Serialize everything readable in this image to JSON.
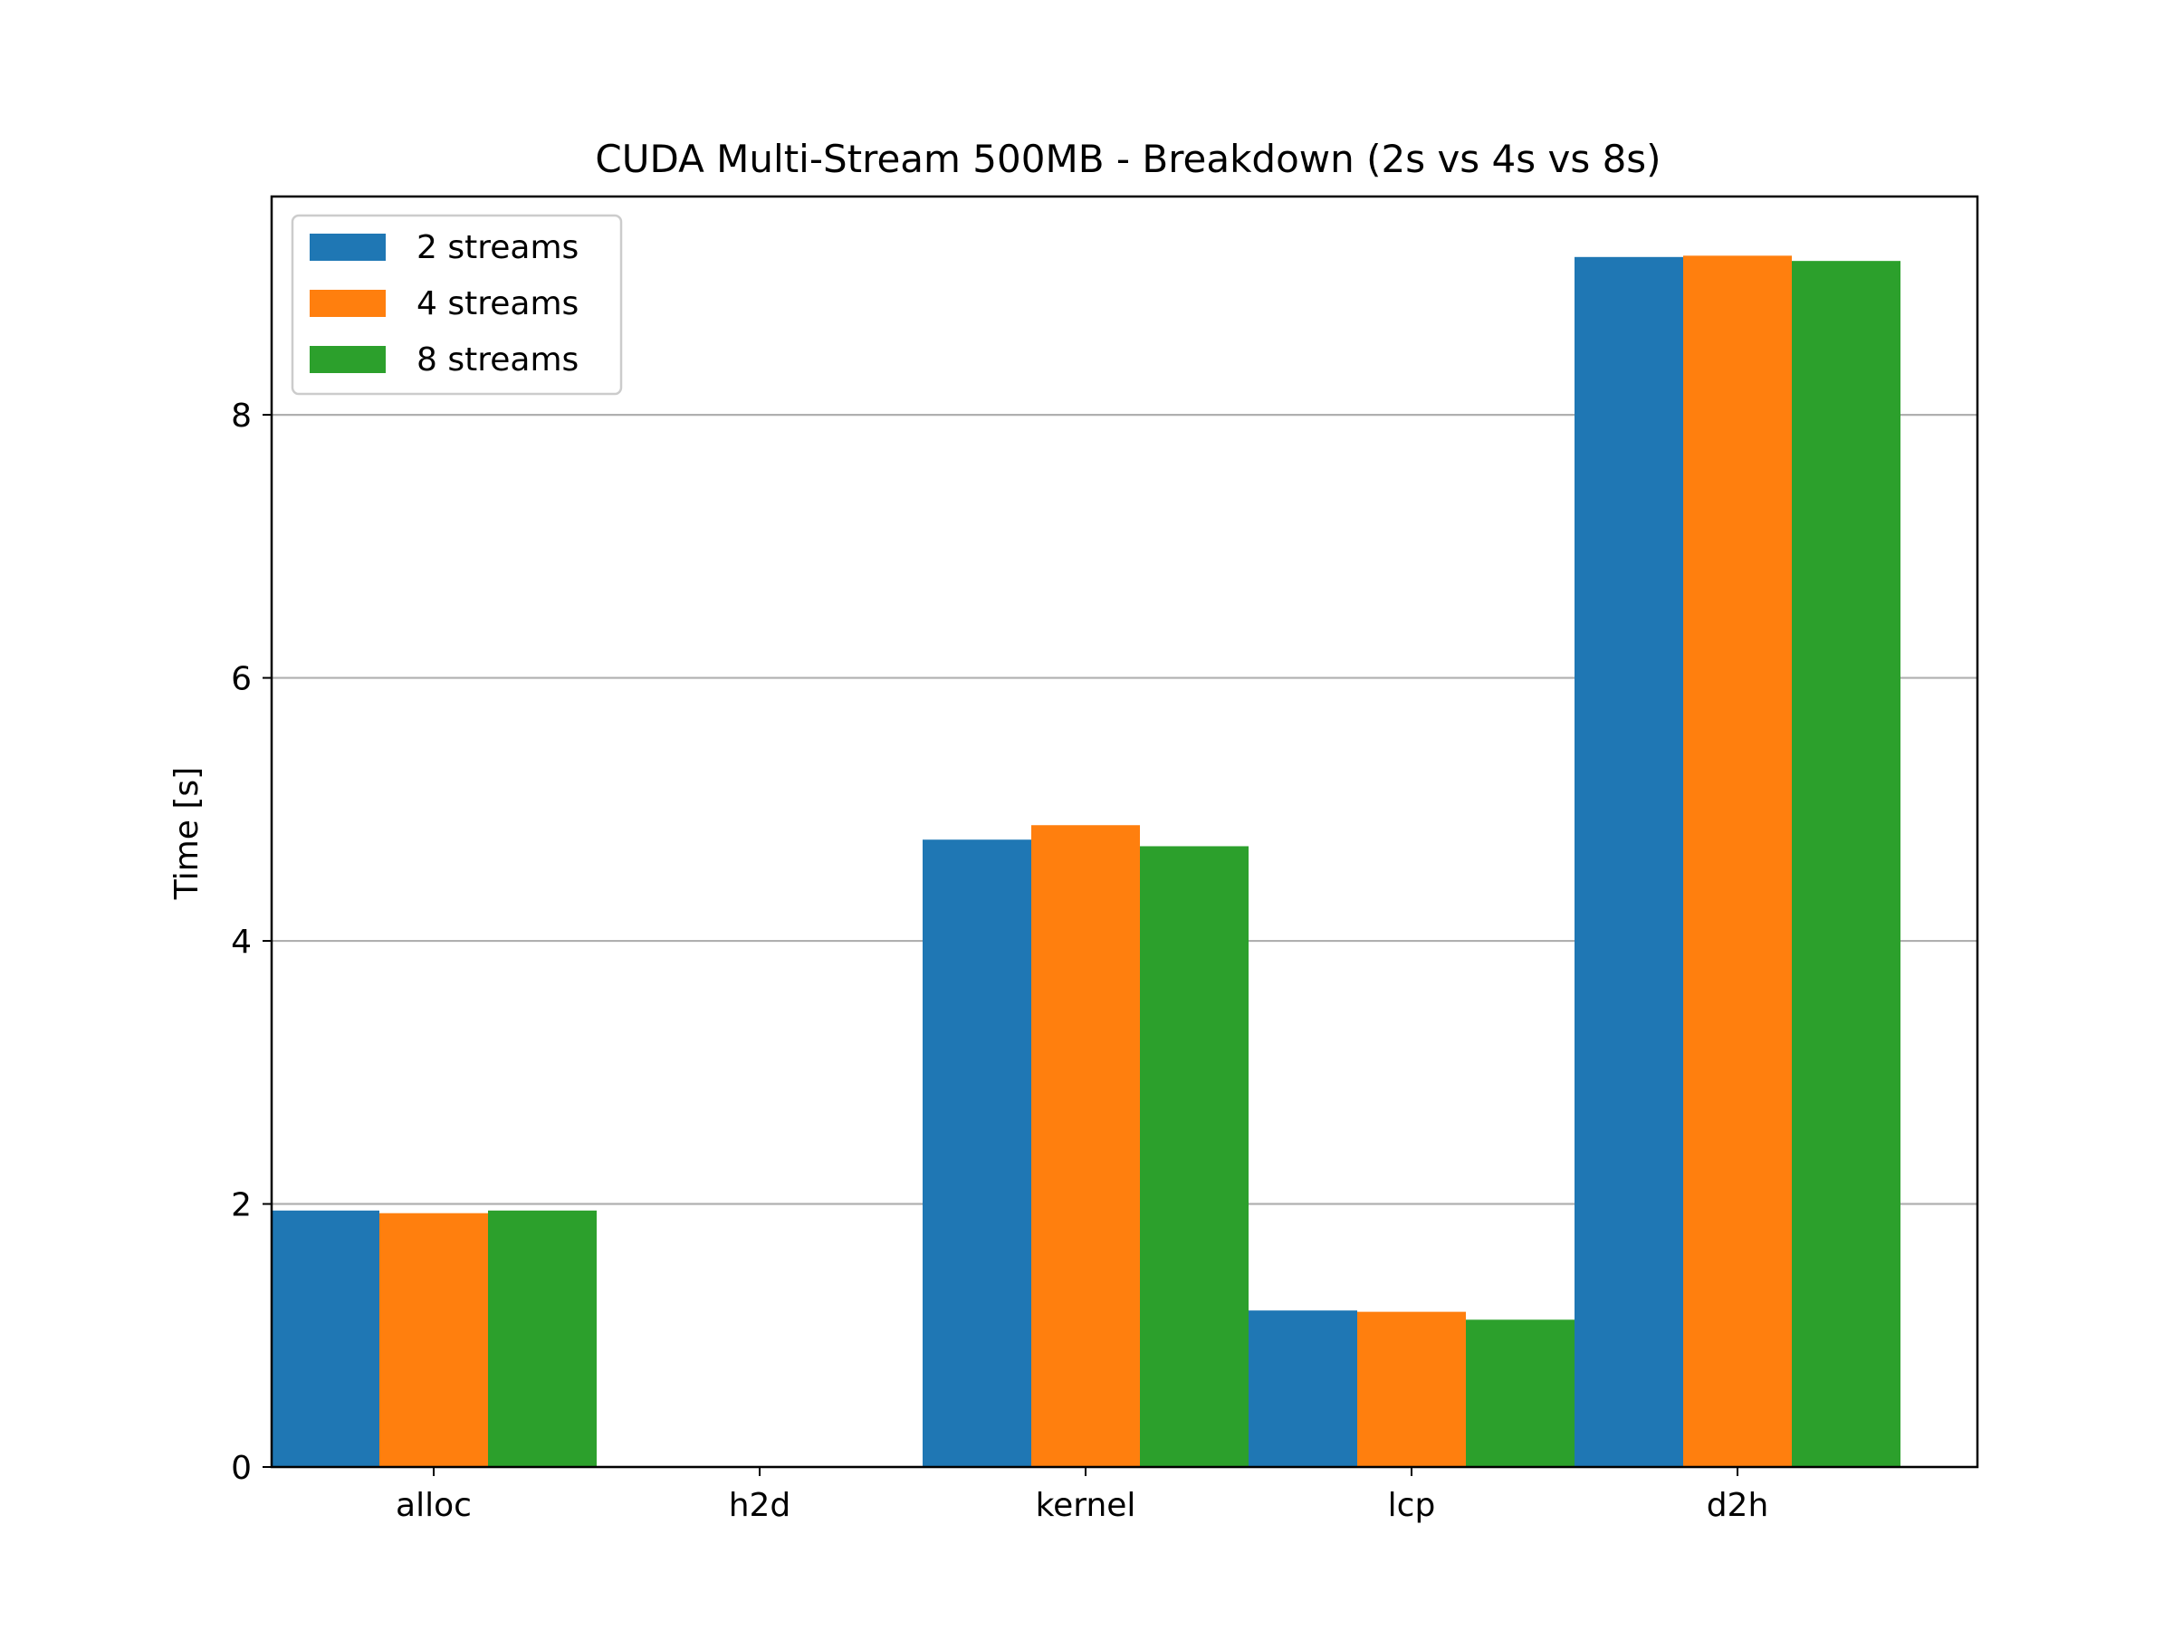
{
  "chart_data": {
    "type": "bar",
    "title": "CUDA Multi-Stream 500MB - Breakdown (2s vs 4s vs 8s)",
    "xlabel": "",
    "ylabel": "Time [s]",
    "categories": [
      "alloc",
      "h2d",
      "kernel",
      "lcp",
      "d2h"
    ],
    "series": [
      {
        "name": "2 streams",
        "color": "#1f77b4",
        "values": [
          1.95,
          0.0,
          4.77,
          1.19,
          9.2
        ]
      },
      {
        "name": "4 streams",
        "color": "#ff7f0e",
        "values": [
          1.93,
          0.0,
          4.88,
          1.18,
          9.21
        ]
      },
      {
        "name": "8 streams",
        "color": "#2ca02c",
        "values": [
          1.95,
          0.0,
          4.72,
          1.12,
          9.17
        ]
      }
    ],
    "ylim": [
      0,
      9.66
    ],
    "yticks": [
      0,
      2,
      4,
      6,
      8
    ],
    "ytick_labels": [
      "0",
      "2",
      "4",
      "6",
      "8"
    ],
    "grid": "horizontal",
    "legend_position": "top-left"
  }
}
